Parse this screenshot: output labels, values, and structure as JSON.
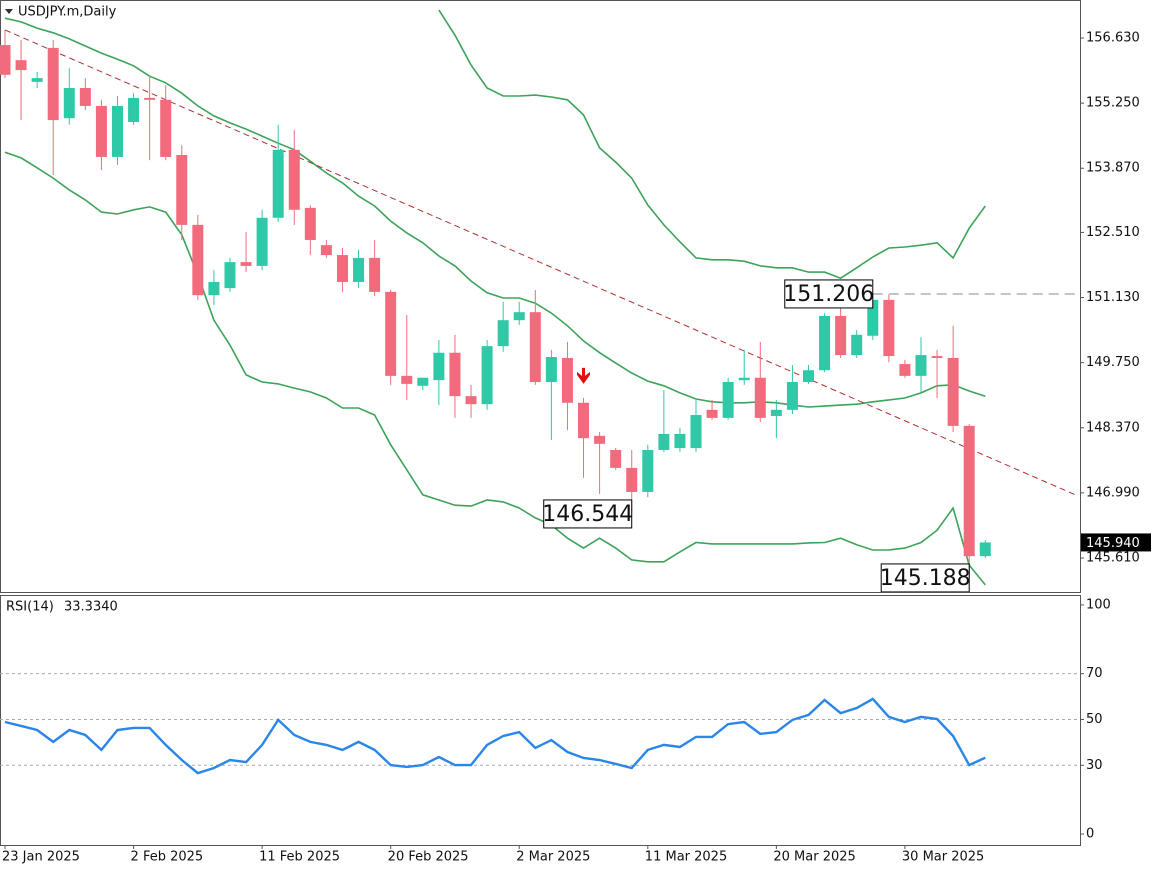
{
  "chart_data": [
    {
      "type": "candlestick",
      "title": "USDJPY.m,Daily",
      "categories": [
        "23 Jan 2025",
        null,
        null,
        null,
        null,
        null,
        null,
        null,
        "2 Feb 2025",
        null,
        null,
        null,
        null,
        null,
        null,
        null,
        "11 Feb 2025",
        null,
        null,
        null,
        null,
        null,
        null,
        null,
        "20 Feb 2025",
        null,
        null,
        null,
        null,
        null,
        null,
        null,
        "2 Mar 2025",
        null,
        null,
        null,
        null,
        null,
        null,
        null,
        "11 Mar 2025",
        null,
        null,
        null,
        null,
        null,
        null,
        null,
        "20 Mar 2025",
        null,
        null,
        null,
        null,
        null,
        null,
        null,
        "30 Mar 2025",
        null,
        null,
        null,
        null,
        null
      ],
      "open": [
        156.48,
        156.16,
        155.7,
        156.42,
        154.93,
        155.57,
        155.19,
        154.11,
        154.85,
        155.36,
        155.32,
        154.15,
        152.67,
        151.18,
        151.33,
        151.88,
        151.8,
        152.82,
        154.26,
        153.03,
        152.24,
        152.03,
        151.46,
        151.97,
        151.25,
        149.47,
        149.26,
        149.38,
        149.96,
        149.04,
        148.87,
        150.1,
        150.65,
        150.82,
        149.34,
        149.85,
        148.9,
        148.2,
        147.9,
        147.52,
        147.01,
        147.9,
        147.94,
        147.94,
        148.75,
        148.58,
        149.38,
        149.43,
        148.62,
        148.75,
        149.34,
        149.59,
        150.74,
        149.91,
        150.32,
        151.08,
        149.72,
        149.47,
        149.89,
        149.85,
        148.41,
        145.65
      ],
      "high": [
        156.8,
        156.59,
        155.91,
        156.59,
        155.99,
        155.78,
        155.32,
        155.4,
        155.46,
        155.85,
        155.63,
        154.36,
        152.88,
        151.71,
        151.97,
        152.52,
        152.99,
        154.79,
        154.68,
        153.09,
        152.35,
        152.18,
        152.14,
        152.35,
        151.29,
        150.76,
        149.43,
        150.23,
        150.34,
        149.28,
        150.23,
        151.04,
        151.04,
        151.29,
        150.02,
        150.19,
        149.0,
        148.28,
        147.94,
        147.9,
        148.01,
        149.17,
        148.37,
        148.96,
        148.96,
        149.43,
        150.02,
        150.19,
        148.96,
        149.7,
        149.7,
        150.8,
        151.1,
        150.44,
        151.206,
        151.19,
        149.81,
        150.29,
        150.02,
        150.53,
        148.45,
        145.99
      ],
      "low": [
        155.78,
        154.89,
        155.57,
        153.73,
        154.79,
        155.1,
        153.83,
        153.94,
        154.79,
        154.04,
        154.04,
        152.35,
        151.08,
        150.97,
        151.25,
        151.67,
        151.71,
        152.73,
        152.67,
        152.03,
        151.97,
        151.25,
        151.33,
        151.16,
        149.28,
        148.96,
        149.17,
        148.85,
        148.58,
        148.58,
        148.75,
        149.98,
        150.55,
        149.28,
        148.11,
        148.32,
        147.31,
        146.97,
        147.48,
        146.544,
        146.9,
        147.86,
        147.86,
        147.86,
        148.54,
        148.54,
        149.28,
        148.49,
        148.15,
        148.66,
        149.3,
        149.55,
        149.85,
        149.85,
        150.23,
        149.76,
        149.43,
        149.13,
        149.0,
        148.28,
        145.188,
        145.61
      ],
      "close": [
        155.85,
        155.95,
        155.78,
        154.89,
        155.57,
        155.19,
        154.11,
        155.19,
        155.36,
        155.32,
        154.11,
        152.67,
        151.18,
        151.46,
        151.88,
        151.8,
        152.82,
        154.26,
        152.99,
        152.35,
        152.03,
        151.46,
        151.97,
        151.25,
        149.47,
        149.3,
        149.43,
        149.96,
        149.04,
        148.87,
        150.1,
        150.65,
        150.82,
        149.34,
        149.87,
        148.9,
        148.15,
        148.03,
        147.52,
        147.01,
        147.9,
        148.24,
        148.24,
        148.64,
        148.58,
        149.34,
        149.43,
        148.58,
        148.75,
        149.34,
        149.59,
        150.74,
        149.91,
        150.34,
        151.08,
        149.89,
        149.47,
        149.91,
        149.85,
        148.41,
        145.65,
        145.94
      ],
      "up_color": "#2fc9a8",
      "down_color": "#f26b7c",
      "bands": {
        "color": "#3da35a",
        "upper": [
          null,
          null,
          null,
          null,
          null,
          null,
          null,
          null,
          null,
          null,
          null,
          null,
          null,
          null,
          null,
          null,
          null,
          null,
          null,
          null,
          null,
          null,
          null,
          null,
          null,
          null,
          null,
          157.22,
          156.69,
          156.06,
          155.57,
          155.4,
          155.4,
          155.42,
          155.38,
          155.32,
          155.0,
          154.3,
          154.0,
          153.66,
          153.09,
          152.67,
          152.31,
          151.97,
          151.93,
          151.93,
          151.9,
          151.8,
          151.76,
          151.76,
          151.67,
          151.67,
          151.54,
          151.76,
          151.99,
          152.18,
          152.2,
          152.24,
          152.29,
          151.97,
          152.6,
          153.07
        ],
        "middle": [
          157.05,
          156.97,
          156.84,
          156.74,
          156.61,
          156.46,
          156.31,
          156.18,
          156.04,
          155.82,
          155.68,
          155.46,
          155.19,
          154.98,
          154.83,
          154.7,
          154.55,
          154.4,
          154.26,
          154.02,
          153.77,
          153.56,
          153.28,
          153.07,
          152.75,
          152.5,
          152.29,
          152.01,
          151.8,
          151.48,
          151.23,
          151.12,
          151.12,
          151.01,
          150.8,
          150.53,
          150.21,
          149.96,
          149.74,
          149.53,
          149.36,
          149.26,
          149.11,
          148.98,
          148.92,
          148.9,
          148.9,
          148.92,
          148.9,
          148.85,
          148.81,
          148.83,
          148.85,
          148.87,
          148.92,
          148.96,
          149.0,
          149.11,
          149.26,
          149.28,
          149.15,
          149.04
        ],
        "lower": [
          154.21,
          154.09,
          153.88,
          153.66,
          153.41,
          153.2,
          152.94,
          152.9,
          152.99,
          153.05,
          152.94,
          152.46,
          151.61,
          150.65,
          150.12,
          149.49,
          149.34,
          149.3,
          149.21,
          149.13,
          149.0,
          148.79,
          148.79,
          148.64,
          148.01,
          147.48,
          146.95,
          146.84,
          146.73,
          146.71,
          146.84,
          146.8,
          146.67,
          146.46,
          146.31,
          146.03,
          145.82,
          146.03,
          145.82,
          145.57,
          145.53,
          145.53,
          145.74,
          145.94,
          145.91,
          145.91,
          145.91,
          145.91,
          145.91,
          145.91,
          145.93,
          145.94,
          146.03,
          145.89,
          145.78,
          145.78,
          145.82,
          145.94,
          146.2,
          146.67,
          145.46,
          145.04
        ]
      },
      "trendline": {
        "color": "#b03030",
        "x": [
          0,
          66.6
        ],
        "y": [
          156.8,
          146.95
        ]
      },
      "price_labels": [
        151.206,
        146.544,
        145.188
      ],
      "signal": {
        "index": 36,
        "price": 149.3,
        "color": "#e01010"
      },
      "last_price": {
        "value": 145.94,
        "label": "145.940"
      },
      "ylim": [
        144.89,
        157.435
      ],
      "yticks": [
        {
          "value": 156.63,
          "label": "156.630"
        },
        {
          "value": 155.25,
          "label": "155.250"
        },
        {
          "value": 153.87,
          "label": "153.870"
        },
        {
          "value": 152.51,
          "label": "152.510"
        },
        {
          "value": 151.13,
          "label": "151.130"
        },
        {
          "value": 149.75,
          "label": "149.750"
        },
        {
          "value": 148.37,
          "label": "148.370"
        },
        {
          "value": 146.99,
          "label": "146.990"
        },
        {
          "value": 145.61,
          "label": "145.610"
        }
      ]
    },
    {
      "type": "line",
      "title": "RSI(14)",
      "current": {
        "value": 33.334,
        "label": "33.3340"
      },
      "color": "#2a86e8",
      "values": [
        48.9,
        47.2,
        45.4,
        40.2,
        45.4,
        43.2,
        36.7,
        45.4,
        46.3,
        46.3,
        38.9,
        32.3,
        26.6,
        28.8,
        32.3,
        31.4,
        38.9,
        49.8,
        43.2,
        40.2,
        38.9,
        36.7,
        40.2,
        36.7,
        30.1,
        29.3,
        30.1,
        33.6,
        30.1,
        30.1,
        38.9,
        42.8,
        44.5,
        37.6,
        41.0,
        35.8,
        33.2,
        32.3,
        30.6,
        28.8,
        36.7,
        38.9,
        38.0,
        42.4,
        42.4,
        48.0,
        48.9,
        43.7,
        44.5,
        49.8,
        52.0,
        58.5,
        52.8,
        55.0,
        59.0,
        51.1,
        48.9,
        51.1,
        50.2,
        42.8,
        30.1,
        33.33
      ],
      "levels": [
        70,
        50,
        30
      ],
      "ylim": [
        -4.8,
        103.9
      ],
      "yticks": [
        100,
        70,
        50,
        30,
        0
      ]
    }
  ]
}
